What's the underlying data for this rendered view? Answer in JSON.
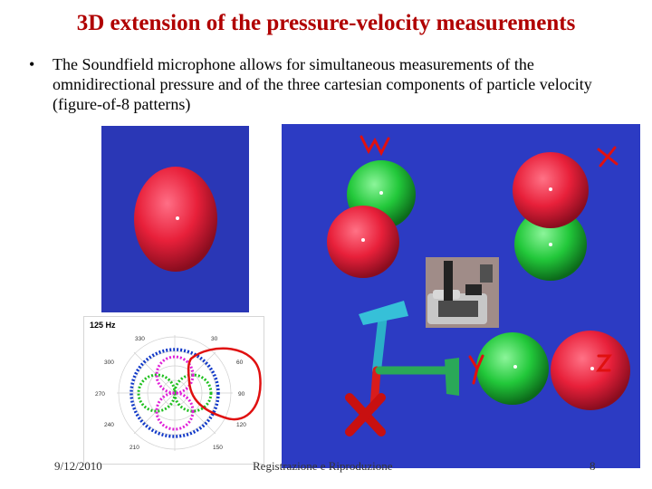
{
  "slide": {
    "title": "3D extension of the pressure-velocity measurements",
    "bullet": {
      "marker": "•",
      "text": "The Soundfield microphone allows for simultaneous measurements of the omnidirectional pressure and of the three cartesian components of particle velocity (figure-of-8 patterns)"
    }
  },
  "polar_plot": {
    "frequency_label": "125 Hz",
    "angles": [
      "330",
      "30",
      "300",
      "60",
      "270",
      "90",
      "240",
      "120",
      "210",
      "150"
    ]
  },
  "annotations": {
    "w_label": "W",
    "x_label": "X",
    "y_label": "Y",
    "z_label": "Z"
  },
  "footer": {
    "date": "9/12/2010",
    "center": "Registrazione e Riproduzione",
    "page": "8"
  },
  "colors": {
    "title": "#b00000",
    "panel_blue": "#2c3bc3",
    "sphere_red": "#e8203a",
    "sphere_green": "#22c83a",
    "annotation_red": "#e01010"
  }
}
